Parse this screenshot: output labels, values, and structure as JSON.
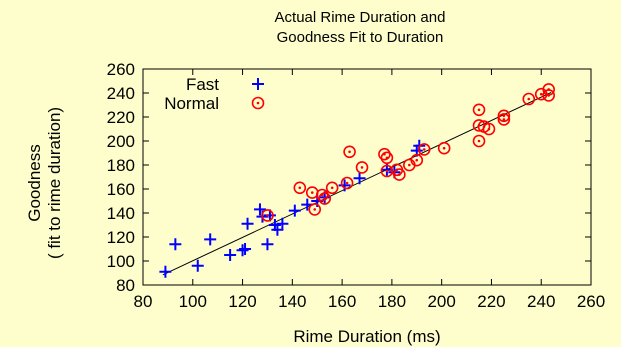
{
  "chart_data": {
    "type": "scatter",
    "title": [
      "Actual Rime Duration and",
      "Goodness Fit to Duration"
    ],
    "xlabel": "Rime Duration (ms)",
    "ylabel": [
      "Goodness",
      "( fit to rime duration)"
    ],
    "xlim": [
      80,
      260
    ],
    "ylim": [
      80,
      260
    ],
    "xticks": [
      80,
      100,
      120,
      140,
      160,
      180,
      200,
      220,
      240,
      260
    ],
    "yticks": [
      80,
      100,
      120,
      140,
      160,
      180,
      200,
      220,
      240,
      260
    ],
    "grid": false,
    "legend_position": "top-left",
    "series": [
      {
        "name": "Fast",
        "marker": "plus",
        "color": "#0000ff",
        "points": [
          [
            89,
            91
          ],
          [
            93,
            114
          ],
          [
            102,
            96
          ],
          [
            107,
            118
          ],
          [
            115,
            105
          ],
          [
            120,
            109
          ],
          [
            121,
            110
          ],
          [
            122,
            131
          ],
          [
            127,
            143
          ],
          [
            128,
            137
          ],
          [
            130,
            114
          ],
          [
            131,
            138
          ],
          [
            133,
            130
          ],
          [
            134,
            126
          ],
          [
            136,
            131
          ],
          [
            141,
            142
          ],
          [
            146,
            147
          ],
          [
            150,
            150
          ],
          [
            153,
            153
          ],
          [
            161,
            163
          ],
          [
            167,
            169
          ],
          [
            178,
            176
          ],
          [
            181,
            174
          ],
          [
            190,
            192
          ],
          [
            191,
            196
          ]
        ]
      },
      {
        "name": "Normal",
        "marker": "circle-dot",
        "color": "#ff0000",
        "points": [
          [
            130,
            138
          ],
          [
            143,
            161
          ],
          [
            148,
            157
          ],
          [
            149,
            143
          ],
          [
            152,
            155
          ],
          [
            153,
            152
          ],
          [
            156,
            161
          ],
          [
            162,
            165
          ],
          [
            163,
            191
          ],
          [
            168,
            178
          ],
          [
            177,
            189
          ],
          [
            178,
            186
          ],
          [
            178,
            175
          ],
          [
            182,
            176
          ],
          [
            183,
            172
          ],
          [
            187,
            180
          ],
          [
            190,
            184
          ],
          [
            193,
            193
          ],
          [
            201,
            194
          ],
          [
            215,
            226
          ],
          [
            215,
            213
          ],
          [
            215,
            200
          ],
          [
            217,
            212
          ],
          [
            219,
            210
          ],
          [
            225,
            221
          ],
          [
            225,
            218
          ],
          [
            235,
            235
          ],
          [
            240,
            239
          ],
          [
            243,
            238
          ],
          [
            243,
            243
          ]
        ]
      }
    ],
    "fit_line": {
      "x": [
        88,
        244
      ],
      "y": [
        88.5,
        240.5
      ],
      "color": "#000000"
    }
  }
}
